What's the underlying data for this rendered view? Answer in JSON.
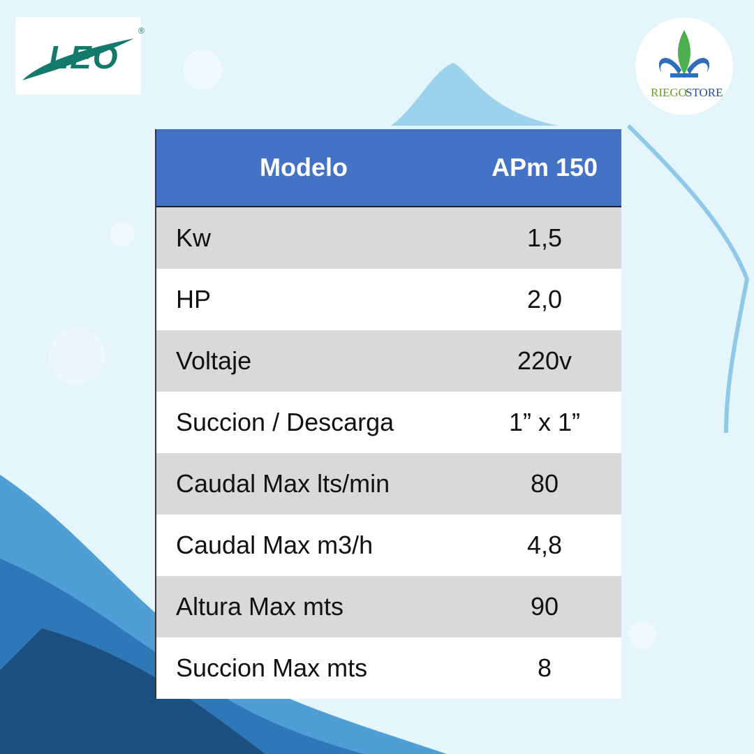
{
  "brand": {
    "logo": "LEO",
    "registered": "®"
  },
  "store": {
    "name_1": "RIEGO",
    "name_2": "STORE"
  },
  "table": {
    "header": [
      "Modelo",
      "APm 150"
    ],
    "rows": [
      [
        "Kw",
        "1,5"
      ],
      [
        "HP",
        "2,0"
      ],
      [
        "Voltaje",
        "220v"
      ],
      [
        "Succion / Descarga",
        "1” x 1”"
      ],
      [
        "Caudal Max lts/min",
        "80"
      ],
      [
        "Caudal Max m3/h",
        "4,8"
      ],
      [
        "Altura Max mts",
        "90"
      ],
      [
        "Succion Max mts",
        "8"
      ]
    ]
  }
}
